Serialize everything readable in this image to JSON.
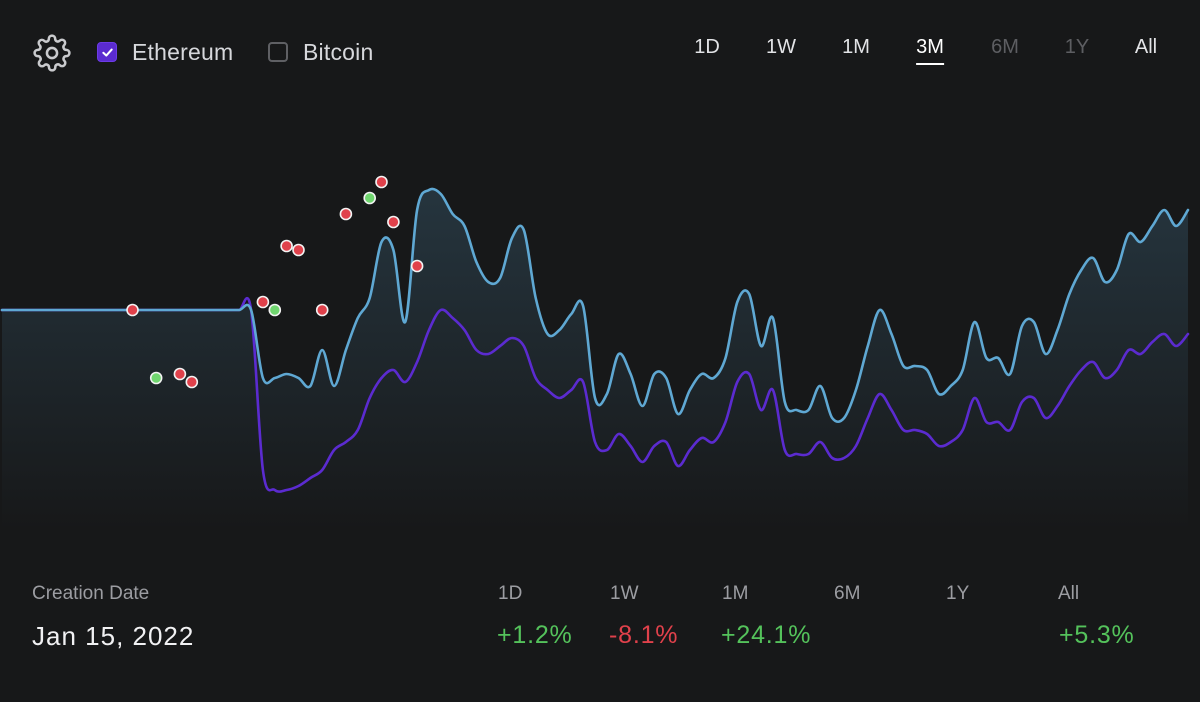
{
  "legend": {
    "ethereum": {
      "label": "Ethereum",
      "checked": true,
      "color": "#5fa8d3"
    },
    "bitcoin": {
      "label": "Bitcoin",
      "checked": false,
      "color": "#5b2bd0"
    }
  },
  "time_ranges": [
    {
      "label": "1D",
      "state": "enabled"
    },
    {
      "label": "1W",
      "state": "enabled"
    },
    {
      "label": "1M",
      "state": "enabled"
    },
    {
      "label": "3M",
      "state": "active"
    },
    {
      "label": "6M",
      "state": "disabled"
    },
    {
      "label": "1Y",
      "state": "disabled"
    },
    {
      "label": "All",
      "state": "enabled"
    }
  ],
  "stats": {
    "creation_label": "Creation Date",
    "creation_value": "Jan 15, 2022",
    "periods": [
      {
        "label": "1D",
        "value": "+1.2%",
        "tone": "positive"
      },
      {
        "label": "1W",
        "value": "-8.1%",
        "tone": "negative"
      },
      {
        "label": "1M",
        "value": "+24.1%",
        "tone": "positive"
      },
      {
        "label": "6M",
        "value": "",
        "tone": "none"
      },
      {
        "label": "1Y",
        "value": "",
        "tone": "none"
      },
      {
        "label": "All",
        "value": "+5.3%",
        "tone": "positive"
      }
    ]
  },
  "colors": {
    "background": "#171819",
    "ethereum_line": "#5fa8d3",
    "comparison_line": "#5b2bd0",
    "marker_red": "#e0414b",
    "marker_green": "#70d66f",
    "positive": "#54c25b",
    "negative": "#e0414b"
  },
  "chart_data": {
    "type": "line",
    "title": "",
    "xlabel": "",
    "ylabel": "",
    "grid": false,
    "y_axis_shown": false,
    "ylim": [
      0,
      100
    ],
    "x": [
      0,
      1,
      2,
      3,
      4,
      5,
      6,
      7,
      8,
      9,
      10,
      11,
      12,
      13,
      14,
      15,
      16,
      17,
      18,
      19,
      20,
      21,
      22,
      23,
      24,
      25,
      26,
      27,
      28,
      29,
      30,
      31,
      32,
      33,
      34,
      35,
      36,
      37,
      38,
      39,
      40,
      41,
      42,
      43,
      44,
      45,
      46,
      47,
      48,
      49,
      50,
      51,
      52,
      53,
      54,
      55,
      56,
      57,
      58,
      59,
      60,
      61,
      62,
      63,
      64,
      65,
      66,
      67,
      68,
      69,
      70,
      71,
      72,
      73,
      74,
      75,
      76,
      77,
      78,
      79,
      80,
      81,
      82,
      83,
      84,
      85,
      86,
      87,
      88,
      89,
      90,
      91,
      92,
      93,
      94,
      95,
      96,
      97,
      98,
      99,
      100
    ],
    "series": [
      {
        "name": "Ethereum",
        "values": [
          55,
          55,
          55,
          55,
          55,
          55,
          55,
          55,
          55,
          55,
          55,
          55,
          55,
          55,
          55,
          55,
          55,
          55,
          55,
          55,
          55,
          55,
          38,
          38,
          39,
          38,
          36,
          45,
          36,
          45,
          53,
          58,
          72,
          70,
          52,
          80,
          85,
          84,
          79,
          76,
          67,
          62,
          63,
          73,
          75,
          58,
          49,
          50,
          54,
          56,
          33,
          34,
          44,
          39,
          31,
          39,
          38,
          29,
          35,
          39,
          38,
          43,
          57,
          59,
          46,
          53,
          32,
          30,
          30,
          36,
          28,
          28,
          35,
          46,
          55,
          49,
          41,
          41,
          40,
          34,
          36,
          40,
          52,
          43,
          43,
          39,
          51,
          52,
          44,
          50,
          59,
          65,
          68,
          62,
          65,
          74,
          72,
          76,
          80,
          76,
          80
        ]
      },
      {
        "name": "",
        "values": [
          55,
          55,
          55,
          55,
          55,
          55,
          55,
          55,
          55,
          55,
          55,
          55,
          55,
          55,
          55,
          55,
          55,
          55,
          55,
          55,
          55,
          55,
          15,
          10,
          10,
          11,
          13,
          15,
          20,
          22,
          25,
          33,
          38,
          40,
          37,
          42,
          50,
          55,
          53,
          50,
          45,
          44,
          46,
          48,
          46,
          38,
          35,
          33,
          35,
          37,
          22,
          20,
          24,
          21,
          17,
          21,
          22,
          16,
          20,
          23,
          22,
          27,
          37,
          39,
          30,
          35,
          20,
          19,
          19,
          22,
          18,
          18,
          21,
          28,
          34,
          30,
          25,
          25,
          24,
          21,
          22,
          25,
          33,
          27,
          27,
          25,
          32,
          33,
          28,
          31,
          36,
          40,
          42,
          38,
          40,
          45,
          44,
          47,
          49,
          46,
          49
        ]
      }
    ],
    "markers": [
      {
        "x": 11,
        "y": 55,
        "color": "red"
      },
      {
        "x": 13,
        "y": 38,
        "color": "green"
      },
      {
        "x": 15,
        "y": 39,
        "color": "red"
      },
      {
        "x": 16,
        "y": 37,
        "color": "red"
      },
      {
        "x": 22,
        "y": 57,
        "color": "red"
      },
      {
        "x": 23,
        "y": 55,
        "color": "green"
      },
      {
        "x": 24,
        "y": 71,
        "color": "red"
      },
      {
        "x": 25,
        "y": 70,
        "color": "red"
      },
      {
        "x": 27,
        "y": 55,
        "color": "red"
      },
      {
        "x": 29,
        "y": 79,
        "color": "red"
      },
      {
        "x": 31,
        "y": 83,
        "color": "green"
      },
      {
        "x": 32,
        "y": 87,
        "color": "red"
      },
      {
        "x": 33,
        "y": 77,
        "color": "red"
      },
      {
        "x": 35,
        "y": 66,
        "color": "red"
      }
    ]
  }
}
